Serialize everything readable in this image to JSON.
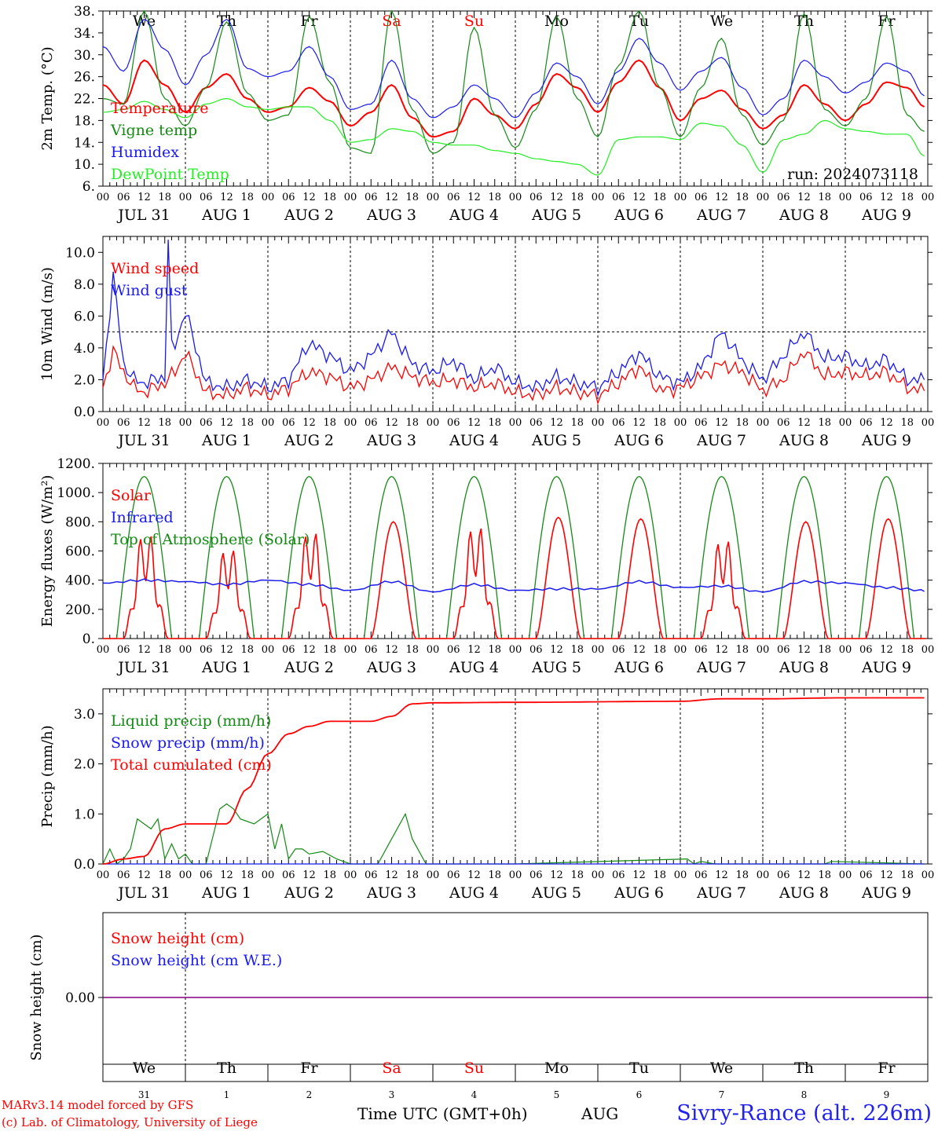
{
  "footer": {
    "model_line": "MARv3.14 model forced by GFS",
    "credit_line": "(c) Lab. of Climatology, University of Liege",
    "time_label": "Time UTC (GMT+0h)",
    "month_label": "AUG",
    "site": "Sivry-Rance (alt. 226m)"
  },
  "colors": {
    "weekday": "#000000",
    "weekend": "#ff0000",
    "red": "#ff0000",
    "green": "#138a13",
    "blue": "#1a1aee",
    "lightgreen": "#22ee22",
    "purple": "#800080"
  },
  "chart_data": [
    {
      "id": "temperature",
      "type": "line",
      "ylabel": "2m Temp. (°C)",
      "ylim": [
        6,
        38
      ],
      "yticks": [
        "6.",
        "10.",
        "14.",
        "18.",
        "22.",
        "26.",
        "30.",
        "34.",
        "38."
      ],
      "ytick_values": [
        6,
        10,
        14,
        18,
        22,
        26,
        30,
        34,
        38
      ],
      "weekdays": [
        "We",
        "Th",
        "Fr",
        "Sa",
        "Su",
        "Mo",
        "Tu",
        "We",
        "Th",
        "Fr"
      ],
      "weekend_days": [
        3,
        4
      ],
      "annotation": "run: 2024073118",
      "x_hours": [
        0,
        6,
        12,
        18
      ],
      "series": [
        {
          "name": "Temperature",
          "color_key": "red",
          "x": [
            0,
            6,
            12,
            18,
            24,
            30,
            36,
            42,
            48,
            54,
            60,
            66,
            72,
            78,
            84,
            90,
            96,
            102,
            108,
            114,
            120,
            126,
            132,
            138,
            144,
            150,
            156,
            162,
            168,
            174,
            180,
            186,
            192,
            198,
            204,
            210,
            216,
            222,
            228,
            234,
            239
          ],
          "y": [
            24.5,
            21,
            29,
            24.5,
            19.5,
            24,
            26.5,
            22,
            19.5,
            20.5,
            24,
            21.5,
            17,
            19.5,
            24.5,
            18.5,
            15,
            16,
            22,
            19,
            16.5,
            21,
            26.5,
            24,
            19.5,
            25,
            29,
            24,
            18,
            22,
            23.5,
            20,
            16.5,
            19,
            24.5,
            21,
            18,
            21,
            25,
            24,
            20.5
          ]
        },
        {
          "name": "Vigne temp",
          "color_key": "green",
          "x": [
            0,
            6,
            12,
            18,
            24,
            30,
            36,
            42,
            48,
            54,
            60,
            66,
            72,
            78,
            84,
            90,
            96,
            102,
            108,
            114,
            120,
            126,
            132,
            138,
            144,
            150,
            156,
            162,
            168,
            174,
            180,
            186,
            192,
            198,
            204,
            210,
            216,
            222,
            228,
            234,
            239
          ],
          "y": [
            22,
            21,
            38,
            22,
            17,
            24,
            36,
            23,
            18,
            19,
            37,
            25,
            13,
            12,
            38,
            20,
            12,
            14,
            35,
            19,
            13,
            20,
            37,
            22,
            15,
            28,
            38,
            24,
            15,
            24,
            33,
            19,
            13.5,
            18,
            37.5,
            20,
            17,
            22,
            37,
            19,
            16
          ]
        },
        {
          "name": "Humidex",
          "color_key": "blue",
          "x": [
            0,
            6,
            12,
            18,
            24,
            30,
            36,
            42,
            48,
            54,
            60,
            66,
            72,
            78,
            84,
            90,
            96,
            102,
            108,
            114,
            120,
            126,
            132,
            138,
            144,
            150,
            156,
            162,
            168,
            174,
            180,
            186,
            192,
            198,
            204,
            210,
            216,
            222,
            228,
            234,
            239
          ],
          "y": [
            31.5,
            27,
            36.5,
            31,
            24.5,
            30,
            36.5,
            27.5,
            26,
            27,
            31.5,
            26,
            20,
            21,
            29,
            22,
            18.5,
            20.5,
            24.5,
            22,
            18.5,
            23,
            28.5,
            26,
            21,
            27,
            33,
            28.5,
            23.5,
            27,
            29.5,
            24,
            19,
            22,
            29,
            26,
            23,
            25,
            28.5,
            27,
            22.5
          ]
        },
        {
          "name": "DewPoint Temp",
          "color_key": "lightgreen",
          "x": [
            0,
            6,
            12,
            18,
            24,
            30,
            36,
            42,
            48,
            54,
            60,
            66,
            72,
            78,
            84,
            90,
            96,
            102,
            108,
            114,
            120,
            126,
            132,
            138,
            144,
            150,
            156,
            162,
            168,
            174,
            180,
            186,
            192,
            198,
            204,
            210,
            216,
            222,
            228,
            234,
            239
          ],
          "y": [
            19.5,
            20,
            21.5,
            20,
            18.5,
            21,
            22,
            20.5,
            20,
            20.5,
            20.5,
            18,
            14,
            14.5,
            16.5,
            16,
            14,
            13.5,
            13.5,
            12.5,
            12,
            11,
            10.5,
            10,
            8,
            14.5,
            15,
            15,
            14.5,
            17.5,
            17,
            13.5,
            8.5,
            14.5,
            15.5,
            18,
            16.5,
            16,
            15.5,
            15.5,
            11.5
          ]
        }
      ]
    },
    {
      "id": "wind",
      "type": "line",
      "ylabel": "10m Wind (m/s)",
      "ylim": [
        0,
        11
      ],
      "yticks": [
        "0.0",
        "2.0",
        "4.0",
        "6.0",
        "8.0",
        "10.0"
      ],
      "ytick_values": [
        0,
        2,
        4,
        6,
        8,
        10
      ],
      "reference_line": 5,
      "x_hours": [
        0,
        6,
        12,
        18
      ],
      "series": [
        {
          "name": "Wind speed",
          "color_key": "red",
          "x": [
            0,
            3,
            6,
            9,
            12,
            15,
            18,
            21,
            24,
            30,
            36,
            42,
            48,
            54,
            60,
            66,
            72,
            78,
            84,
            90,
            96,
            102,
            108,
            114,
            120,
            126,
            132,
            138,
            144,
            150,
            156,
            162,
            168,
            174,
            180,
            186,
            192,
            198,
            204,
            210,
            216,
            222,
            228,
            234,
            239
          ],
          "y": [
            1.5,
            3.8,
            2.5,
            1.5,
            1.2,
            1.5,
            1.8,
            2.5,
            3.7,
            1.2,
            1.0,
            1.5,
            1.0,
            1.5,
            2.5,
            2.2,
            1.5,
            2.0,
            2.8,
            2.2,
            1.8,
            2.0,
            1.5,
            1.8,
            1.2,
            1.0,
            1.5,
            1.2,
            1.0,
            1.8,
            2.8,
            1.3,
            1.5,
            2.2,
            3.0,
            2.5,
            1.3,
            2.0,
            3.8,
            2.2,
            2.5,
            2.2,
            2.5,
            1.5,
            1.3
          ]
        },
        {
          "name": "Wind gust",
          "color_key": "blue",
          "x": [
            0,
            3,
            6,
            9,
            12,
            15,
            18,
            19,
            20,
            21,
            24,
            30,
            36,
            42,
            48,
            54,
            60,
            66,
            72,
            78,
            84,
            90,
            96,
            102,
            108,
            114,
            120,
            126,
            132,
            138,
            144,
            150,
            156,
            162,
            168,
            174,
            180,
            186,
            192,
            198,
            204,
            210,
            216,
            222,
            228,
            234,
            239
          ],
          "y": [
            2.0,
            8.5,
            3.0,
            2.0,
            1.8,
            2.0,
            2.2,
            10.8,
            4.0,
            4.2,
            6.3,
            1.8,
            1.5,
            2.0,
            1.5,
            2.0,
            4.3,
            3.5,
            2.5,
            3.5,
            5.0,
            3.0,
            2.5,
            3.2,
            2.0,
            2.8,
            1.8,
            1.5,
            2.2,
            1.8,
            1.5,
            2.5,
            3.7,
            2.2,
            1.8,
            2.8,
            5.0,
            3.2,
            2.0,
            3.5,
            5.0,
            3.3,
            3.5,
            2.8,
            3.3,
            2.0,
            2.0
          ]
        }
      ]
    },
    {
      "id": "energy",
      "type": "line",
      "ylabel": "Energy fluxes (W/m²)",
      "ylim": [
        0,
        1200
      ],
      "yticks": [
        "0.",
        "200.",
        "400.",
        "600.",
        "800.",
        "1000.",
        "1200."
      ],
      "ytick_values": [
        0,
        200,
        400,
        600,
        800,
        1000,
        1200
      ],
      "x_hours": [
        0,
        6,
        12,
        18
      ],
      "series": [
        {
          "name": "Solar",
          "color_key": "red",
          "day_peaks": [
            780,
            670,
            800,
            800,
            840,
            830,
            820,
            740,
            800,
            820
          ]
        },
        {
          "name": "Infrared",
          "color_key": "blue",
          "x": [
            0,
            12,
            24,
            36,
            48,
            60,
            72,
            84,
            96,
            108,
            120,
            132,
            144,
            156,
            168,
            180,
            192,
            204,
            216,
            228,
            239
          ],
          "y": [
            380,
            400,
            390,
            370,
            400,
            370,
            330,
            390,
            320,
            370,
            330,
            340,
            340,
            390,
            350,
            360,
            320,
            390,
            380,
            350,
            330
          ]
        },
        {
          "name": "Top of Atmosphere (Solar)",
          "color_key": "green",
          "peak": 1110
        }
      ]
    },
    {
      "id": "precip",
      "type": "line",
      "ylabel": "Precip (mm/h)",
      "ylim": [
        0,
        3.5
      ],
      "yticks": [
        "0.0",
        "1.0",
        "2.0",
        "3.0"
      ],
      "ytick_values": [
        0,
        1,
        2,
        3
      ],
      "x_hours": [
        0,
        6,
        12,
        18
      ],
      "series": [
        {
          "name": "Liquid precip (mm/h)",
          "color_key": "green",
          "x": [
            0,
            2,
            4,
            6,
            8,
            10,
            12,
            14,
            16,
            18,
            20,
            22,
            24,
            26,
            30,
            34,
            36,
            38,
            40,
            44,
            48,
            50,
            52,
            54,
            56,
            58,
            60,
            64,
            68,
            72,
            76,
            80,
            84,
            88,
            90,
            94,
            96,
            120,
            170,
            172,
            174,
            178,
            182,
            210,
            212,
            239
          ],
          "y": [
            0,
            0.3,
            0,
            0.1,
            0.3,
            0.9,
            0.8,
            0.7,
            0.9,
            0.1,
            0.4,
            0.1,
            0.2,
            0,
            0,
            1.1,
            1.2,
            1.1,
            0.9,
            0.8,
            1.0,
            0.3,
            0.8,
            0.1,
            0.3,
            0.3,
            0.2,
            0.25,
            0.1,
            0,
            0,
            0,
            0.5,
            1.0,
            0.5,
            0,
            0,
            0,
            0.1,
            0,
            0.05,
            0,
            0,
            0,
            0.05,
            0
          ]
        },
        {
          "name": "Snow precip (mm/h)",
          "color_key": "blue",
          "x": [
            0,
            239
          ],
          "y": [
            0,
            0
          ]
        },
        {
          "name": "Total cumulated (cm)",
          "color_key": "red",
          "x": [
            0,
            6,
            12,
            18,
            24,
            30,
            36,
            42,
            48,
            54,
            60,
            66,
            72,
            78,
            84,
            90,
            96,
            120,
            168,
            180,
            192,
            216,
            239
          ],
          "y": [
            0,
            0.1,
            0.15,
            0.7,
            0.8,
            0.8,
            0.8,
            1.5,
            2.2,
            2.6,
            2.75,
            2.85,
            2.85,
            2.85,
            2.95,
            3.2,
            3.22,
            3.23,
            3.25,
            3.3,
            3.3,
            3.32,
            3.32
          ]
        }
      ]
    },
    {
      "id": "snow",
      "type": "line",
      "ylabel": "Snow height (cm)",
      "yticks": [
        "0.00"
      ],
      "ytick_values": [
        0
      ],
      "day_numbers": [
        "31",
        "1",
        "2",
        "3",
        "4",
        "5",
        "6",
        "7",
        "8",
        "9"
      ],
      "series": [
        {
          "name": "Snow height (cm)",
          "color_key": "red",
          "value": 0
        },
        {
          "name": "Snow height (cm W.E.)",
          "color_key": "blue",
          "value": 0
        }
      ]
    }
  ],
  "date_labels": [
    "JUL 31",
    "AUG  1",
    "AUG  2",
    "AUG  3",
    "AUG  4",
    "AUG  5",
    "AUG  6",
    "AUG  7",
    "AUG  8",
    "AUG  9"
  ]
}
